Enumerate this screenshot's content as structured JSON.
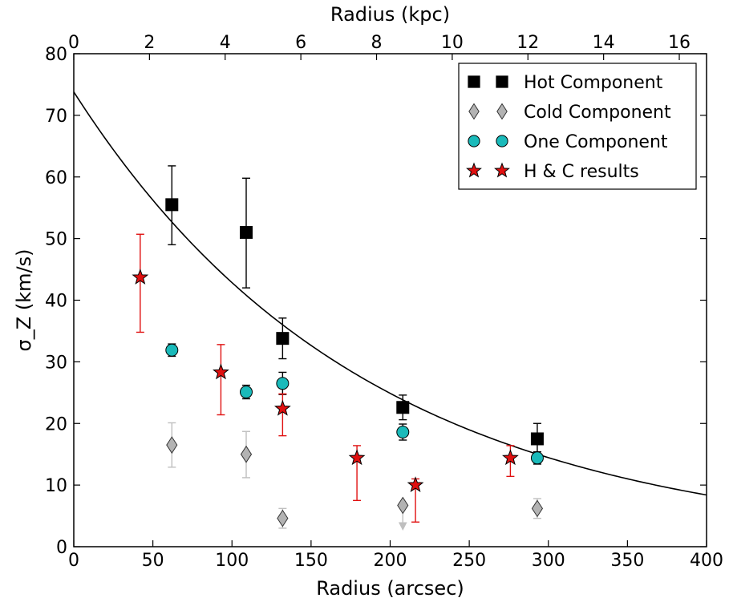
{
  "chart_data": {
    "type": "scatter",
    "xlabel": "Radius (arcsec)",
    "ylabel": "σ_Z (km/s)",
    "top_xlabel": "Radius (kpc)",
    "xlim": [
      0,
      400
    ],
    "ylim": [
      0,
      80
    ],
    "top_xlim": [
      0,
      16.72
    ],
    "x_ticks": [
      0,
      50,
      100,
      150,
      200,
      250,
      300,
      350,
      400
    ],
    "y_ticks": [
      0,
      10,
      20,
      30,
      40,
      50,
      60,
      70,
      80
    ],
    "top_x_ticks": [
      0,
      2,
      4,
      6,
      8,
      10,
      12,
      14,
      16
    ],
    "legend_position": "top-right",
    "series": [
      {
        "name": "Hot Component",
        "marker": "square",
        "color": "#000000",
        "error_color": "#000000",
        "points": [
          {
            "x": 62,
            "y": 55.5,
            "lo": 49,
            "hi": 61.8
          },
          {
            "x": 109,
            "y": 51,
            "lo": 42,
            "hi": 59.8
          },
          {
            "x": 132,
            "y": 33.8,
            "lo": 30.5,
            "hi": 37.1
          },
          {
            "x": 208,
            "y": 22.6,
            "lo": 20.6,
            "hi": 24.6
          },
          {
            "x": 293,
            "y": 17.5,
            "lo": 15,
            "hi": 20
          }
        ]
      },
      {
        "name": "Cold Component",
        "marker": "diamond",
        "color": "#b3b3b3",
        "error_color": "#bfbfbf",
        "points": [
          {
            "x": 62,
            "y": 16.5,
            "lo": 12.9,
            "hi": 20.1
          },
          {
            "x": 109,
            "y": 15,
            "lo": 11.2,
            "hi": 18.7
          },
          {
            "x": 132,
            "y": 4.6,
            "lo": 3,
            "hi": 6.2
          },
          {
            "x": 208,
            "y": 6.7,
            "lo": 3,
            "hi": 6.7,
            "upper_limit": true
          },
          {
            "x": 293,
            "y": 6.2,
            "lo": 4.6,
            "hi": 7.8
          }
        ]
      },
      {
        "name": "One Component",
        "marker": "circle",
        "color": "#1ababa",
        "error_color": "#000000",
        "points": [
          {
            "x": 62,
            "y": 31.9,
            "lo": 30.9,
            "hi": 32.9
          },
          {
            "x": 109,
            "y": 25.1,
            "lo": 24,
            "hi": 26.2
          },
          {
            "x": 132,
            "y": 26.5,
            "lo": 24.7,
            "hi": 28.3
          },
          {
            "x": 208,
            "y": 18.6,
            "lo": 17.3,
            "hi": 19.9
          },
          {
            "x": 293,
            "y": 14.4,
            "lo": 13.4,
            "hi": 15.4
          }
        ]
      },
      {
        "name": "H & C results",
        "marker": "star",
        "color": "#e01010",
        "error_color": "#e01010",
        "points": [
          {
            "x": 42,
            "y": 43.7,
            "lo": 34.8,
            "hi": 50.7
          },
          {
            "x": 93,
            "y": 28.3,
            "lo": 21.4,
            "hi": 32.8
          },
          {
            "x": 132,
            "y": 22.4,
            "lo": 18,
            "hi": 24.8
          },
          {
            "x": 179,
            "y": 14.4,
            "lo": 7.5,
            "hi": 16.4
          },
          {
            "x": 216,
            "y": 10,
            "lo": 4,
            "hi": 11
          },
          {
            "x": 276,
            "y": 14.4,
            "lo": 11.4,
            "hi": 16.4
          }
        ]
      }
    ],
    "curve": {
      "function": "exponential",
      "y0": 73.8,
      "scale_length": 184,
      "color": "#000000"
    }
  }
}
